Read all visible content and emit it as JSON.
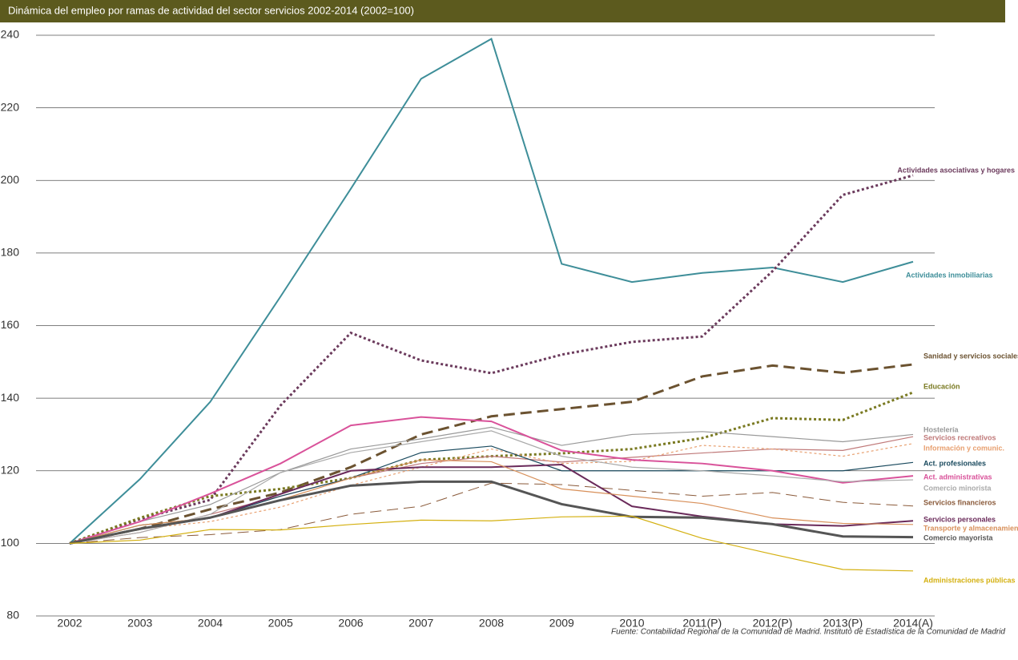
{
  "chart_data": {
    "type": "line",
    "title": "Dinámica del empleo por ramas de actividad del sector servicios 2002-2014 (2002=100)",
    "source": "Fuente: Contabilidad Regional de la Comunidad de Madrid. Instituto de Estadística de la Comunidad de Madrid",
    "categories": [
      "2002",
      "2003",
      "2004",
      "2005",
      "2006",
      "2007",
      "2008",
      "2009",
      "2010",
      "2011(P)",
      "2012(P)",
      "2013(P)",
      "2014(A)"
    ],
    "ylim": [
      80,
      240
    ],
    "yticks": [
      80,
      100,
      120,
      140,
      160,
      180,
      200,
      220,
      240
    ],
    "grid": true,
    "series": [
      {
        "name": "Actividades inmobiliarias",
        "color": "#3e8e99",
        "width": 2,
        "dash": "solid",
        "values": [
          100,
          117.7,
          139,
          168,
          197.7,
          228,
          239,
          177,
          172,
          174.5,
          176,
          172,
          177.6
        ]
      },
      {
        "name": "Actividades asociativas y hogares",
        "color": "#6b3a5c",
        "width": 3,
        "dash": "dotted",
        "values": [
          100,
          106.7,
          112,
          138,
          158,
          150.4,
          146.9,
          152,
          155.5,
          157,
          175,
          196,
          201.4
        ]
      },
      {
        "name": "Sanidad y servicios sociales",
        "color": "#6b5230",
        "width": 3,
        "dash": "dashed",
        "values": [
          100,
          104,
          109.4,
          114,
          121,
          130,
          135,
          137,
          139,
          146,
          149,
          147,
          149.3
        ]
      },
      {
        "name": "Educación",
        "color": "#7a7a22",
        "width": 3,
        "dash": "dotted",
        "values": [
          100,
          107,
          113,
          115,
          118,
          123,
          124,
          124.8,
          126,
          129,
          134.5,
          134,
          141.6
        ]
      },
      {
        "name": "Hostelería",
        "color": "#999999",
        "width": 1.2,
        "dash": "solid",
        "values": [
          100,
          106,
          110.7,
          119.5,
          126,
          128.8,
          132,
          127,
          130,
          130.8,
          129.4,
          128,
          130
        ]
      },
      {
        "name": "Servicios recreativos",
        "color": "#c07a7a",
        "width": 1.2,
        "dash": "solid",
        "values": [
          100,
          103,
          108,
          113,
          118,
          122,
          124,
          122.4,
          123.7,
          124.9,
          126,
          125.6,
          129.4
        ]
      },
      {
        "name": "Información y comunic.",
        "color": "#e8a070",
        "width": 1.2,
        "dash": "dotted",
        "values": [
          100,
          104,
          106,
          110,
          116,
          121,
          126,
          122,
          122.6,
          127,
          126,
          124,
          127.5
        ]
      },
      {
        "name": "Act. profesionales",
        "color": "#1a4a5e",
        "width": 1.2,
        "dash": "solid",
        "values": [
          100,
          105,
          107,
          113,
          118,
          125,
          126.8,
          120,
          120,
          120,
          120,
          120,
          122.3
        ]
      },
      {
        "name": "Act. administrativas",
        "color": "#d9529a",
        "width": 2,
        "dash": "solid",
        "values": [
          100,
          106,
          113.7,
          122,
          132.5,
          134.8,
          133.6,
          125.6,
          123,
          122,
          120,
          116.7,
          118.6
        ]
      },
      {
        "name": "Comercio minorista",
        "color": "#aaaaaa",
        "width": 1.2,
        "dash": "solid",
        "values": [
          100,
          103,
          108,
          119.5,
          125,
          128,
          131,
          124,
          121,
          120,
          118.6,
          117,
          117.5
        ]
      },
      {
        "name": "Servicios financieros",
        "color": "#8a5a3a",
        "width": 1,
        "dash": "dashed",
        "values": [
          100,
          101.6,
          102.4,
          103.8,
          108,
          110.2,
          116.6,
          116.2,
          114.6,
          113,
          114,
          111.3,
          110.3
        ]
      },
      {
        "name": "Servicios personales",
        "color": "#6a2a5a",
        "width": 2,
        "dash": "solid",
        "values": [
          100,
          104,
          107,
          113.6,
          120,
          121,
          121,
          121.7,
          110.2,
          107.4,
          105.3,
          104.8,
          106.2
        ]
      },
      {
        "name": "Transporte y almacenamiento",
        "color": "#d8905a",
        "width": 1.2,
        "dash": "solid",
        "values": [
          100,
          105,
          107,
          112,
          118,
          123,
          122.5,
          115,
          113,
          111,
          107,
          105.5,
          105.2
        ]
      },
      {
        "name": "Comercio mayorista",
        "color": "#555555",
        "width": 3,
        "dash": "solid",
        "values": [
          100,
          104,
          107.1,
          111.9,
          115.9,
          117,
          117,
          110.8,
          107.3,
          107.1,
          105.3,
          101.9,
          101.7
        ]
      },
      {
        "name": "Administraciones públicas",
        "color": "#d4b010",
        "width": 1.2,
        "dash": "solid",
        "values": [
          100,
          100.9,
          103.8,
          103.7,
          105.2,
          106.4,
          106.2,
          107.3,
          107.5,
          101.4,
          97,
          92.8,
          92.4
        ]
      }
    ]
  }
}
